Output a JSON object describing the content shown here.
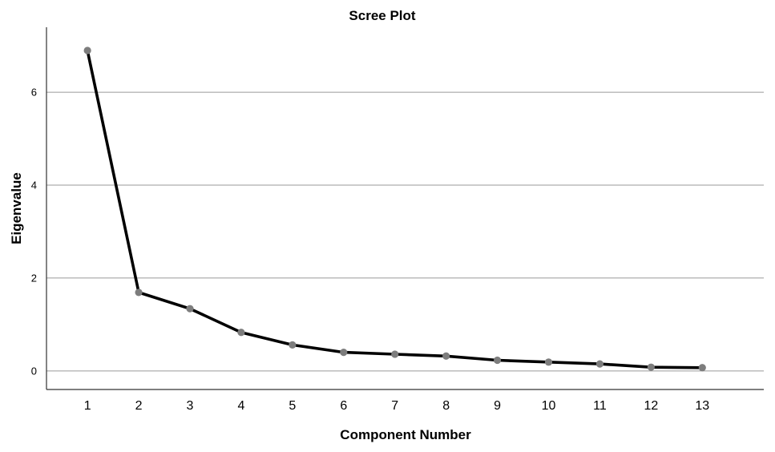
{
  "chart_data": {
    "type": "line",
    "title": "Scree Plot",
    "xlabel": "Component Number",
    "ylabel": "Eigenvalue",
    "x": [
      1,
      2,
      3,
      4,
      5,
      6,
      7,
      8,
      9,
      10,
      11,
      12,
      13
    ],
    "series": [
      {
        "values": [
          6.9,
          1.69,
          1.34,
          0.83,
          0.56,
          0.4,
          0.36,
          0.32,
          0.23,
          0.19,
          0.15,
          0.08,
          0.07
        ]
      }
    ],
    "y_ticks": [
      "0",
      "2",
      "4",
      "6"
    ],
    "x_ticks": [
      "1",
      "2",
      "3",
      "4",
      "5",
      "6",
      "7",
      "8",
      "9",
      "10",
      "11",
      "12",
      "13"
    ],
    "ylim": [
      -0.4,
      7.4
    ],
    "xlim": [
      0.2,
      14.2
    ],
    "grid": "horizontal",
    "line_color": "#000000",
    "marker_color": "#7d7d7d",
    "grid_color": "#9a9a9a"
  }
}
